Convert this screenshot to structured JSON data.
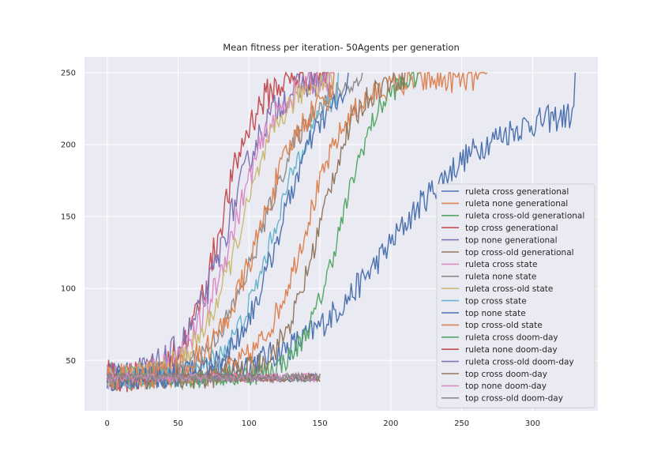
{
  "chart_data": {
    "type": "line",
    "title": "Mean fitness per iteration- 50Agents per generation",
    "xlabel": "",
    "ylabel": "",
    "xlim": [
      -16,
      346
    ],
    "ylim": [
      15,
      261
    ],
    "xticks": [
      0,
      50,
      100,
      150,
      200,
      250,
      300
    ],
    "yticks": [
      50,
      100,
      150,
      200,
      250
    ],
    "grid": true,
    "legend_position": "center-right",
    "series": [
      {
        "name": "ruleta cross generational",
        "color": "#4c72b0",
        "length": 330,
        "start": 38,
        "plateau": 225,
        "mid": 200,
        "width": 35,
        "noise": 10
      },
      {
        "name": "ruleta none generational",
        "color": "#dd8452",
        "length": 268,
        "start": 38,
        "plateau": 245,
        "mid": 140,
        "width": 16,
        "noise": 9
      },
      {
        "name": "ruleta cross-old generational",
        "color": "#55a868",
        "length": 219,
        "start": 38,
        "plateau": 252,
        "mid": 165,
        "width": 14,
        "noise": 8
      },
      {
        "name": "top cross generational",
        "color": "#c44e52",
        "length": 156,
        "start": 38,
        "plateau": 250,
        "mid": 80,
        "width": 13,
        "noise": 12
      },
      {
        "name": "top none generational",
        "color": "#8172b3",
        "length": 158,
        "start": 38,
        "plateau": 248,
        "mid": 85,
        "width": 16,
        "noise": 11
      },
      {
        "name": "top cross-old generational",
        "color": "#937860",
        "length": 210,
        "start": 38,
        "plateau": 250,
        "mid": 150,
        "width": 14,
        "noise": 9
      },
      {
        "name": "ruleta cross state",
        "color": "#da8bc3",
        "length": 160,
        "start": 38,
        "plateau": 250,
        "mid": 90,
        "width": 16,
        "noise": 10
      },
      {
        "name": "ruleta none state",
        "color": "#8c8c8c",
        "length": 180,
        "start": 38,
        "plateau": 248,
        "mid": 110,
        "width": 18,
        "noise": 8
      },
      {
        "name": "ruleta cross-old state",
        "color": "#ccb974",
        "length": 160,
        "start": 38,
        "plateau": 250,
        "mid": 95,
        "width": 16,
        "noise": 9
      },
      {
        "name": "top cross state",
        "color": "#64b5cd",
        "length": 163,
        "start": 38,
        "plateau": 245,
        "mid": 118,
        "width": 16,
        "noise": 8
      },
      {
        "name": "top none state",
        "color": "#4c72b0",
        "length": 170,
        "start": 38,
        "plateau": 245,
        "mid": 122,
        "width": 16,
        "noise": 9
      },
      {
        "name": "top cross-old state",
        "color": "#dd8452",
        "length": 160,
        "start": 38,
        "plateau": 245,
        "mid": 108,
        "width": 17,
        "noise": 10
      },
      {
        "name": "ruleta cross doom-day",
        "color": "#55a868",
        "length": 150,
        "start": 38,
        "plateau": 38,
        "mid": 0,
        "width": 1,
        "noise": 3
      },
      {
        "name": "ruleta none doom-day",
        "color": "#c44e52",
        "length": 150,
        "start": 38,
        "plateau": 38,
        "mid": 0,
        "width": 1,
        "noise": 3
      },
      {
        "name": "ruleta cross-old doom-day",
        "color": "#8172b3",
        "length": 150,
        "start": 38,
        "plateau": 38,
        "mid": 0,
        "width": 1,
        "noise": 3
      },
      {
        "name": "top cross doom-day",
        "color": "#937860",
        "length": 150,
        "start": 38,
        "plateau": 38,
        "mid": 0,
        "width": 1,
        "noise": 3
      },
      {
        "name": "top none doom-day",
        "color": "#da8bc3",
        "length": 150,
        "start": 38,
        "plateau": 38,
        "mid": 0,
        "width": 1,
        "noise": 3
      },
      {
        "name": "top cross-old doom-day",
        "color": "#8c8c8c",
        "length": 150,
        "start": 38,
        "plateau": 38,
        "mid": 0,
        "width": 1,
        "noise": 3
      }
    ]
  }
}
